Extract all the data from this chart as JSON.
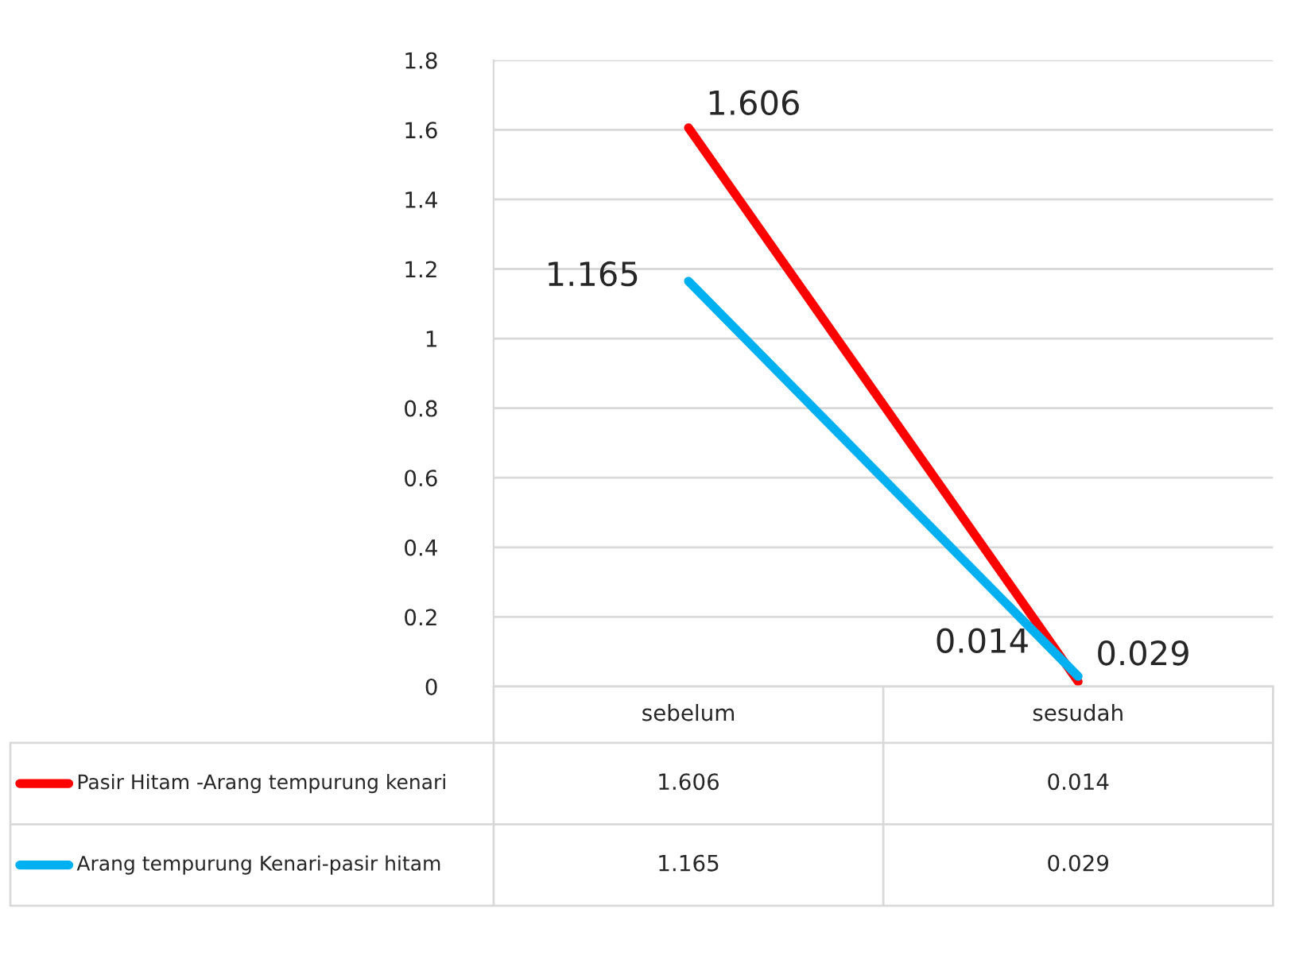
{
  "chart_data": {
    "type": "line",
    "categories": [
      "sebelum",
      "sesudah"
    ],
    "series": [
      {
        "name": "Pasir Hitam -Arang tempurung kenari",
        "color": "#ff0000",
        "values": [
          1.606,
          0.014
        ],
        "value_labels": [
          "1.606",
          "0.014"
        ]
      },
      {
        "name": "Arang tempurung Kenari-pasir hitam",
        "color": "#00b0f0",
        "values": [
          1.165,
          0.029
        ],
        "value_labels": [
          "1.165",
          "0.029"
        ]
      }
    ],
    "ylim": [
      0,
      1.8
    ],
    "yticks": [
      0,
      0.2,
      0.4,
      0.6,
      0.8,
      1,
      1.2,
      1.4,
      1.6,
      1.8
    ],
    "annotations": [
      "1.606",
      "0.014",
      "1.165",
      "0.029"
    ],
    "grid": "y",
    "legend": "bottom",
    "data_labels": true,
    "marker": "none",
    "line_style": "solid"
  }
}
